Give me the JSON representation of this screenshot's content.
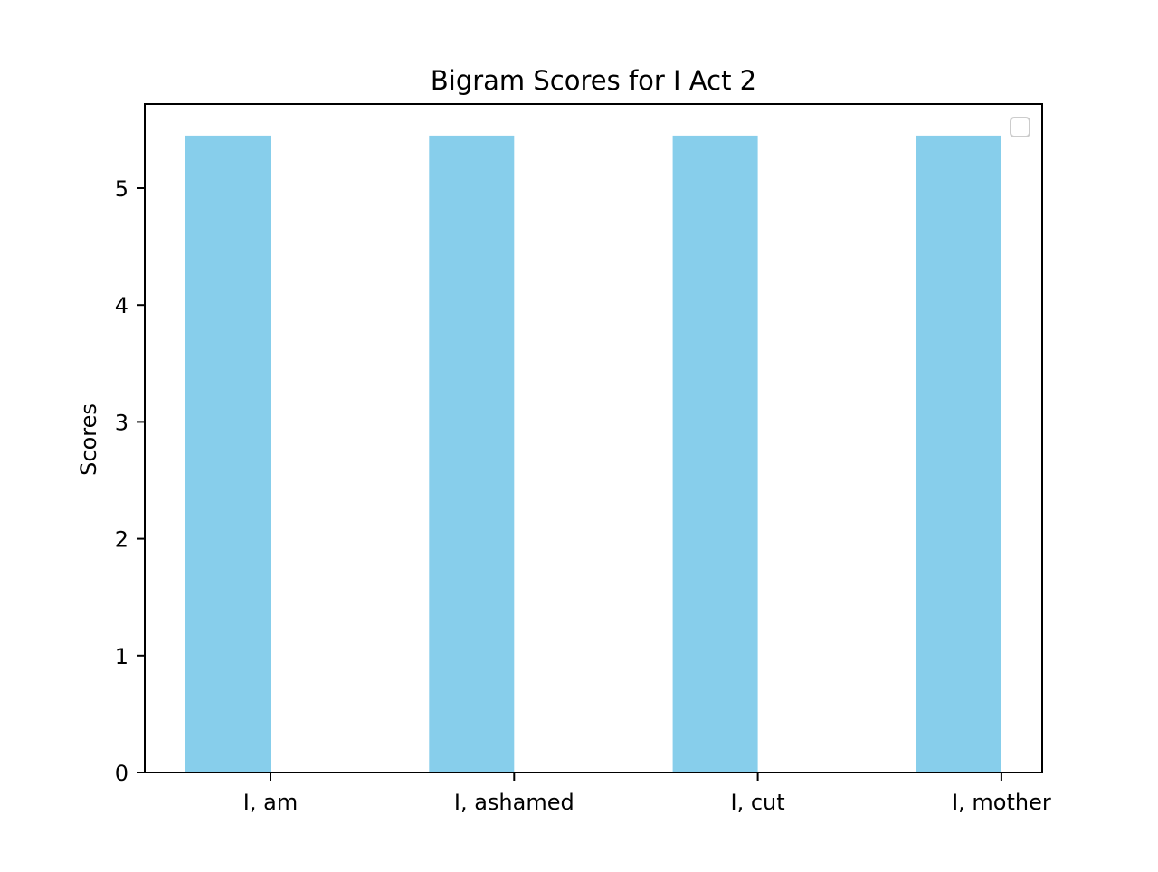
{
  "chart_data": {
    "type": "bar",
    "title": "Bigram Scores for I Act 2",
    "xlabel": "",
    "ylabel": "Scores",
    "categories": [
      "I, am",
      "I, ashamed",
      "I, cut",
      "I, mother"
    ],
    "values": [
      5.45,
      5.45,
      5.45,
      5.45
    ],
    "yticks": [
      0,
      1,
      2,
      3,
      4,
      5
    ],
    "ylim": [
      0,
      5.72
    ],
    "bar_color": "#87CEEB",
    "grid": false,
    "legend": {
      "placement": "top-right",
      "entries": []
    }
  }
}
